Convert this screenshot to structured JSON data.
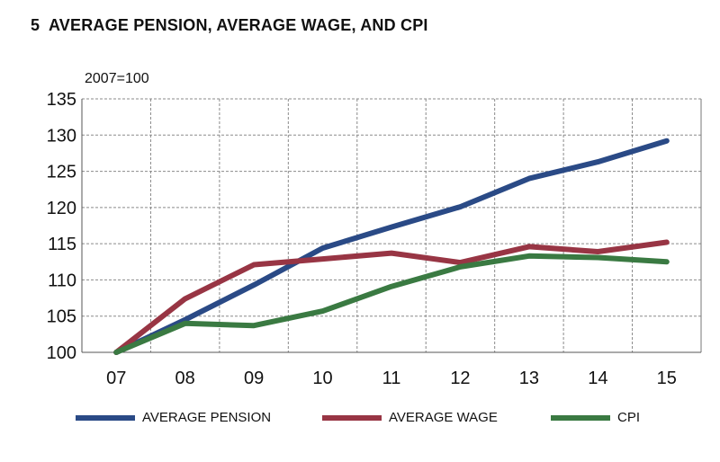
{
  "chart_data": {
    "type": "line",
    "title": "5  AVERAGE PENSION, AVERAGE WAGE, AND CPI",
    "unit_label": "2007=100",
    "categories": [
      "07",
      "08",
      "09",
      "10",
      "11",
      "12",
      "13",
      "14",
      "15"
    ],
    "ylim": [
      100,
      135
    ],
    "yticks": [
      100,
      105,
      110,
      115,
      120,
      125,
      130,
      135
    ],
    "grid": true,
    "legend_position": "bottom",
    "series": [
      {
        "name": "AVERAGE PENSION",
        "color": "#2a4a86",
        "values": [
          100,
          104.5,
          109.3,
          114.4,
          117.3,
          120.1,
          124,
          126.3,
          129.2
        ]
      },
      {
        "name": "AVERAGE WAGE",
        "color": "#983544",
        "values": [
          100,
          107.4,
          112.1,
          112.9,
          113.7,
          112.4,
          114.6,
          113.9,
          115.2
        ]
      },
      {
        "name": "CPI",
        "color": "#3a7a42",
        "values": [
          100,
          104,
          103.7,
          105.7,
          109.1,
          111.8,
          113.3,
          113.1,
          112.5
        ]
      }
    ]
  }
}
